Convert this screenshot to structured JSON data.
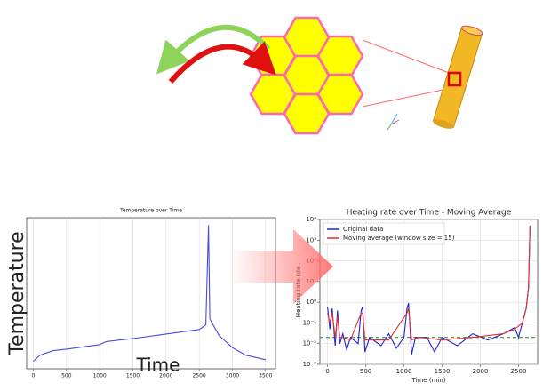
{
  "chart_data": [
    {
      "type": "line",
      "title": "Temperature over Time",
      "xlabel": "Time",
      "ylabel": "Temperature",
      "xlim": [
        -100,
        3650
      ],
      "ylim": [
        0,
        100
      ],
      "xticks": [
        0,
        500,
        1000,
        1500,
        2000,
        2500,
        3000,
        3500
      ],
      "grid": true,
      "series": [
        {
          "color": "#4a4ae0",
          "x": [
            0,
            100,
            300,
            500,
            1000,
            1100,
            1500,
            2000,
            2500,
            2600,
            2640,
            2660,
            2800,
            3000,
            3200,
            3500
          ],
          "values": [
            5,
            9,
            12,
            13,
            16,
            18,
            20,
            23,
            26,
            29,
            95,
            33,
            22,
            14,
            9,
            6
          ]
        }
      ]
    },
    {
      "type": "line",
      "title": "Heating rate over Time - Moving Average",
      "xlabel": "Time (min)",
      "ylabel": "Heating rate (de",
      "log_y": true,
      "xlim": [
        -100,
        2750
      ],
      "ylim": [
        0.001,
        10000
      ],
      "xticks": [
        0,
        500,
        1000,
        1500,
        2000,
        2500
      ],
      "yticks": [
        {
          "value": 0.001,
          "label": "10⁻³"
        },
        {
          "value": 0.01,
          "label": "10⁻²"
        },
        {
          "value": 0.1,
          "label": "10⁻¹"
        },
        {
          "value": 1,
          "label": "10⁰"
        },
        {
          "value": 10,
          "label": "10¹"
        },
        {
          "value": 100,
          "label": "10²"
        },
        {
          "value": 1000,
          "label": "10³"
        },
        {
          "value": 10000,
          "label": "10⁴"
        }
      ],
      "grid": true,
      "legend": "upper-left",
      "hline": {
        "value": 0.02,
        "color": "#2ca02c"
      },
      "series": [
        {
          "name": "Original data",
          "color": "#2020d0",
          "x": [
            0,
            30,
            60,
            100,
            130,
            160,
            200,
            250,
            300,
            400,
            440,
            460,
            490,
            550,
            700,
            800,
            900,
            1000,
            1040,
            1060,
            1100,
            1150,
            1300,
            1400,
            1500,
            1700,
            1900,
            2100,
            2300,
            2450,
            2500,
            2550,
            2600,
            2630,
            2650
          ],
          "values": [
            0.6,
            0.05,
            0.5,
            0.008,
            0.4,
            0.01,
            0.03,
            0.005,
            0.02,
            0.01,
            0.4,
            0.6,
            0.004,
            0.02,
            0.008,
            0.03,
            0.006,
            0.02,
            0.5,
            0.9,
            0.003,
            0.02,
            0.02,
            0.004,
            0.02,
            0.008,
            0.03,
            0.015,
            0.03,
            0.06,
            0.02,
            0.1,
            0.5,
            5,
            5000
          ]
        },
        {
          "name": "Moving average (window size = 15)",
          "color": "#e03030",
          "x": [
            0,
            30,
            60,
            100,
            130,
            160,
            200,
            300,
            440,
            460,
            490,
            550,
            800,
            1040,
            1060,
            1100,
            1200,
            1500,
            1900,
            2300,
            2450,
            2550,
            2600,
            2630,
            2650
          ],
          "values": [
            0.3,
            0.1,
            0.3,
            0.02,
            0.2,
            0.02,
            0.02,
            0.015,
            0.3,
            0.3,
            0.015,
            0.015,
            0.015,
            0.3,
            0.5,
            0.015,
            0.02,
            0.015,
            0.02,
            0.03,
            0.05,
            0.1,
            0.5,
            5,
            5000
          ]
        }
      ]
    }
  ]
}
